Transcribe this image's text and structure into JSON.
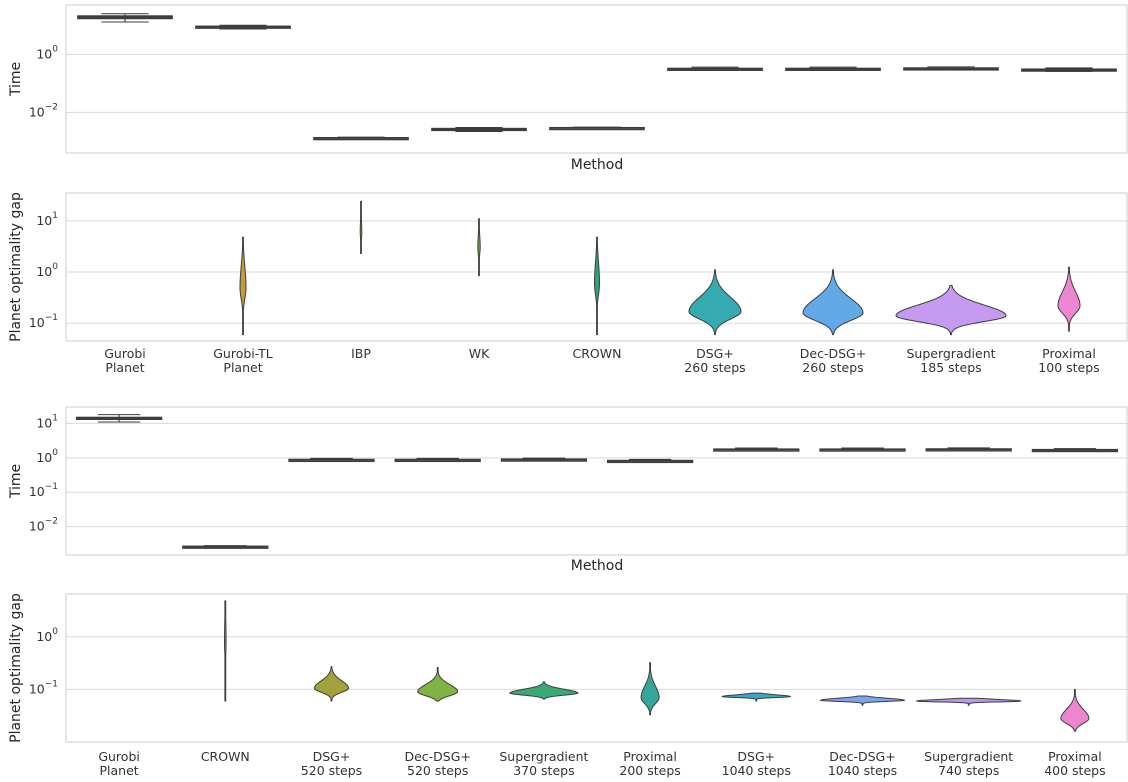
{
  "chart_data": [
    {
      "id": "top-time",
      "type": "box",
      "xlabel": "Method",
      "ylabel": "Time",
      "yscale": "log",
      "ylim": [
        0.0004,
        50
      ],
      "yticks": [
        {
          "value": 1,
          "label": "10",
          "exp": "0"
        },
        {
          "value": 0.01,
          "label": "10",
          "exp": "−2"
        }
      ],
      "categories": [
        "Gurobi Planet",
        "Gurobi-TL Planet",
        "IBP",
        "WK",
        "CROWN",
        "DSG+ 260 steps",
        "Dec-DSG+ 260 steps",
        "Supergradient 185 steps",
        "Proximal 100 steps"
      ],
      "boxes": [
        {
          "min": 13,
          "q1": 17,
          "median": 19,
          "q3": 21,
          "max": 25
        },
        {
          "min": 7.5,
          "q1": 8.3,
          "median": 8.8,
          "q3": 9.3,
          "max": 10
        },
        {
          "min": 0.0012,
          "q1": 0.00125,
          "median": 0.0013,
          "q3": 0.00135,
          "max": 0.0014
        },
        {
          "min": 0.0022,
          "q1": 0.0024,
          "median": 0.0026,
          "q3": 0.0028,
          "max": 0.003
        },
        {
          "min": 0.0027,
          "q1": 0.0028,
          "median": 0.0029,
          "q3": 0.003,
          "max": 0.0031
        },
        {
          "min": 0.28,
          "q1": 0.3,
          "median": 0.31,
          "q3": 0.33,
          "max": 0.36
        },
        {
          "min": 0.28,
          "q1": 0.3,
          "median": 0.31,
          "q3": 0.33,
          "max": 0.36
        },
        {
          "min": 0.29,
          "q1": 0.31,
          "median": 0.32,
          "q3": 0.34,
          "max": 0.37
        },
        {
          "min": 0.26,
          "q1": 0.28,
          "median": 0.29,
          "q3": 0.31,
          "max": 0.34
        }
      ]
    },
    {
      "id": "top-gap",
      "type": "violin",
      "ylabel": "Planet optimality gap",
      "yscale": "log",
      "ylim": [
        0.045,
        35
      ],
      "yticks": [
        {
          "value": 10,
          "label": "10",
          "exp": "1"
        },
        {
          "value": 1,
          "label": "10",
          "exp": "0"
        },
        {
          "value": 0.1,
          "label": "10",
          "exp": "−1"
        }
      ],
      "categories": [
        "Gurobi\nPlanet",
        "Gurobi-TL\nPlanet",
        "IBP",
        "WK",
        "CROWN",
        "DSG+\n260 steps",
        "Dec-DSG+\n260 steps",
        "Supergradient\n185 steps",
        "Proximal\n100 steps"
      ],
      "violins": [
        null,
        {
          "min": 0.06,
          "max": 4.8,
          "color": "#c49a3a",
          "peak": 0.5,
          "halfwidth": 3
        },
        {
          "min": 2.3,
          "max": 24,
          "color": "#8ea53a",
          "peak": 6,
          "halfwidth": 0.8
        },
        {
          "min": 0.85,
          "max": 11,
          "color": "#6fae3e",
          "peak": 3,
          "halfwidth": 1.2
        },
        {
          "min": 0.06,
          "max": 4.8,
          "color": "#33a080",
          "peak": 0.6,
          "halfwidth": 2.5
        },
        {
          "min": 0.06,
          "max": 1.1,
          "color": "#35aab0",
          "peak": 0.17,
          "halfwidth": 26
        },
        {
          "min": 0.06,
          "max": 1.1,
          "color": "#62a9e8",
          "peak": 0.16,
          "halfwidth": 30
        },
        {
          "min": 0.06,
          "max": 0.55,
          "color": "#c49bf0",
          "peak": 0.14,
          "halfwidth": 55
        },
        {
          "min": 0.07,
          "max": 1.25,
          "color": "#ec85d2",
          "peak": 0.22,
          "halfwidth": 11
        }
      ]
    },
    {
      "id": "bottom-time",
      "type": "box",
      "xlabel": "Method",
      "ylabel": "Time",
      "yscale": "log",
      "ylim": [
        0.0015,
        30
      ],
      "yticks": [
        {
          "value": 10,
          "label": "10",
          "exp": "1"
        },
        {
          "value": 1,
          "label": "10",
          "exp": "0"
        },
        {
          "value": 0.1,
          "label": "10",
          "exp": "−1"
        },
        {
          "value": 0.01,
          "label": "10",
          "exp": "−2"
        }
      ],
      "categories": [
        "Gurobi Planet",
        "CROWN",
        "DSG+ 520 steps",
        "Dec-DSG+ 520 steps",
        "Supergradient 370 steps",
        "Proximal 200 steps",
        "DSG+ 1040 steps",
        "Dec-DSG+ 1040 steps",
        "Supergradient 740 steps",
        "Proximal 400 steps"
      ],
      "boxes": [
        {
          "min": 11,
          "q1": 13.3,
          "median": 14,
          "q3": 15,
          "max": 18
        },
        {
          "min": 0.0024,
          "q1": 0.0025,
          "median": 0.0026,
          "q3": 0.0027,
          "max": 0.0028
        },
        {
          "min": 0.8,
          "q1": 0.84,
          "median": 0.87,
          "q3": 0.9,
          "max": 0.96
        },
        {
          "min": 0.8,
          "q1": 0.84,
          "median": 0.87,
          "q3": 0.9,
          "max": 0.96
        },
        {
          "min": 0.82,
          "q1": 0.86,
          "median": 0.89,
          "q3": 0.92,
          "max": 0.98
        },
        {
          "min": 0.74,
          "q1": 0.78,
          "median": 0.81,
          "q3": 0.84,
          "max": 0.9
        },
        {
          "min": 1.6,
          "q1": 1.68,
          "median": 1.74,
          "q3": 1.8,
          "max": 1.92
        },
        {
          "min": 1.6,
          "q1": 1.68,
          "median": 1.74,
          "q3": 1.8,
          "max": 1.92
        },
        {
          "min": 1.62,
          "q1": 1.7,
          "median": 1.76,
          "q3": 1.82,
          "max": 1.94
        },
        {
          "min": 1.55,
          "q1": 1.62,
          "median": 1.68,
          "q3": 1.74,
          "max": 1.85
        }
      ]
    },
    {
      "id": "bottom-gap",
      "type": "violin",
      "ylabel": "Planet optimality gap",
      "yscale": "log",
      "ylim": [
        0.01,
        6.5
      ],
      "yticks": [
        {
          "value": 1,
          "label": "10",
          "exp": "0"
        },
        {
          "value": 0.1,
          "label": "10",
          "exp": "−1"
        }
      ],
      "categories": [
        "Gurobi\nPlanet",
        "CROWN",
        "DSG+\n520 steps",
        "Dec-DSG+\n520 steps",
        "Supergradient\n370 steps",
        "Proximal\n200 steps",
        "DSG+\n1040 steps",
        "Dec-DSG+\n1040 steps",
        "Supergradient\n740 steps",
        "Proximal\n400 steps"
      ],
      "violins": [
        null,
        {
          "min": 0.06,
          "max": 4.8,
          "color": "#b39a3a",
          "peak": 0.8,
          "halfwidth": 0.8
        },
        {
          "min": 0.06,
          "max": 0.27,
          "color": "#a2a23c",
          "peak": 0.105,
          "halfwidth": 17
        },
        {
          "min": 0.06,
          "max": 0.26,
          "color": "#7fb442",
          "peak": 0.09,
          "halfwidth": 20
        },
        {
          "min": 0.065,
          "max": 0.14,
          "color": "#3aaa74",
          "peak": 0.085,
          "halfwidth": 34
        },
        {
          "min": 0.033,
          "max": 0.32,
          "color": "#36a59c",
          "peak": 0.07,
          "halfwidth": 9
        },
        {
          "min": 0.06,
          "max": 0.085,
          "color": "#3aa7c8",
          "peak": 0.073,
          "halfwidth": 34
        },
        {
          "min": 0.05,
          "max": 0.075,
          "color": "#7ea5ea",
          "peak": 0.062,
          "halfwidth": 42
        },
        {
          "min": 0.05,
          "max": 0.068,
          "color": "#b79af0",
          "peak": 0.06,
          "halfwidth": 52
        },
        {
          "min": 0.016,
          "max": 0.1,
          "color": "#ef84cf",
          "peak": 0.028,
          "halfwidth": 14
        }
      ]
    }
  ]
}
